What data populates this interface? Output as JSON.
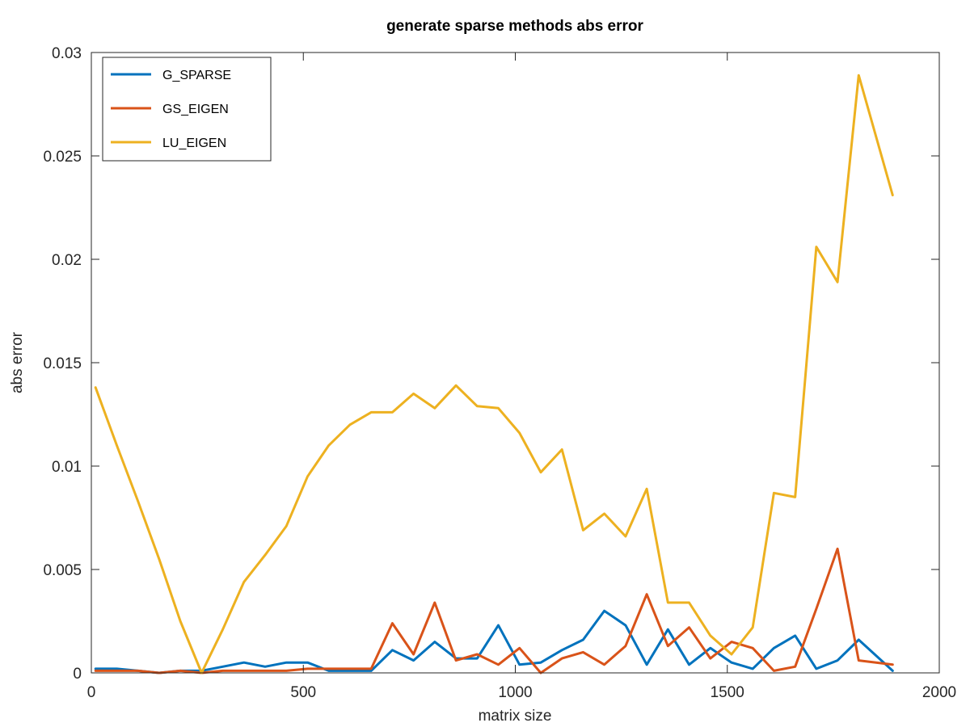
{
  "figure": {
    "background": "#ffffff"
  },
  "chart_data": {
    "type": "line",
    "title": "generate sparse methods abs error",
    "xlabel": "matrix size",
    "ylabel": "abs error",
    "xlim": [
      0,
      2000
    ],
    "ylim": [
      0,
      0.03
    ],
    "xticks": [
      0,
      500,
      1000,
      1500,
      2000
    ],
    "xtick_labels": [
      "0",
      "500",
      "1000",
      "1500",
      "2000"
    ],
    "yticks": [
      0,
      0.005,
      0.01,
      0.015,
      0.02,
      0.025,
      0.03
    ],
    "ytick_labels": [
      "0",
      "0.005",
      "0.01",
      "0.015",
      "0.02",
      "0.025",
      "0.03"
    ],
    "grid": false,
    "legend_position": "top-left",
    "x": [
      10,
      60,
      110,
      160,
      210,
      260,
      310,
      360,
      410,
      460,
      510,
      560,
      610,
      660,
      710,
      760,
      810,
      860,
      910,
      960,
      1010,
      1060,
      1110,
      1160,
      1210,
      1260,
      1310,
      1360,
      1410,
      1460,
      1510,
      1560,
      1610,
      1660,
      1710,
      1760,
      1810,
      1890
    ],
    "series": [
      {
        "name": "G_SPARSE",
        "color": "#0072bd",
        "values": [
          0.0002,
          0.0002,
          0.0001,
          0.0,
          0.0001,
          0.0001,
          0.0003,
          0.0005,
          0.0003,
          0.0005,
          0.0005,
          0.0001,
          0.0001,
          0.0001,
          0.0011,
          0.0006,
          0.0015,
          0.0007,
          0.0007,
          0.0023,
          0.0004,
          0.0005,
          0.0011,
          0.0016,
          0.003,
          0.0023,
          0.0004,
          0.0021,
          0.0004,
          0.0012,
          0.0005,
          0.0002,
          0.0012,
          0.0018,
          0.0002,
          0.0006,
          0.0016,
          0.0001
        ]
      },
      {
        "name": "GS_EIGEN",
        "color": "#d95319",
        "values": [
          0.0001,
          0.0001,
          0.0001,
          0.0,
          0.0001,
          0.0,
          0.0001,
          0.0001,
          0.0001,
          0.0001,
          0.0002,
          0.0002,
          0.0002,
          0.0002,
          0.0024,
          0.0009,
          0.0034,
          0.0006,
          0.0009,
          0.0004,
          0.0012,
          0.0,
          0.0007,
          0.001,
          0.0004,
          0.0013,
          0.0038,
          0.0013,
          0.0022,
          0.0007,
          0.0015,
          0.0012,
          0.0001,
          0.0003,
          0.0031,
          0.006,
          0.0006,
          0.0004
        ]
      },
      {
        "name": "LU_EIGEN",
        "color": "#edb120",
        "values": [
          0.0138,
          0.011,
          0.0083,
          0.0055,
          0.0025,
          0.0,
          0.0021,
          0.0044,
          0.0057,
          0.0071,
          0.0095,
          0.011,
          0.012,
          0.0126,
          0.0126,
          0.0135,
          0.0128,
          0.0139,
          0.0129,
          0.0128,
          0.0116,
          0.0097,
          0.0108,
          0.0069,
          0.0077,
          0.0066,
          0.0089,
          0.0034,
          0.0034,
          0.0018,
          0.0009,
          0.0022,
          0.0087,
          0.0085,
          0.0206,
          0.0189,
          0.0289,
          0.0231
        ]
      }
    ]
  }
}
